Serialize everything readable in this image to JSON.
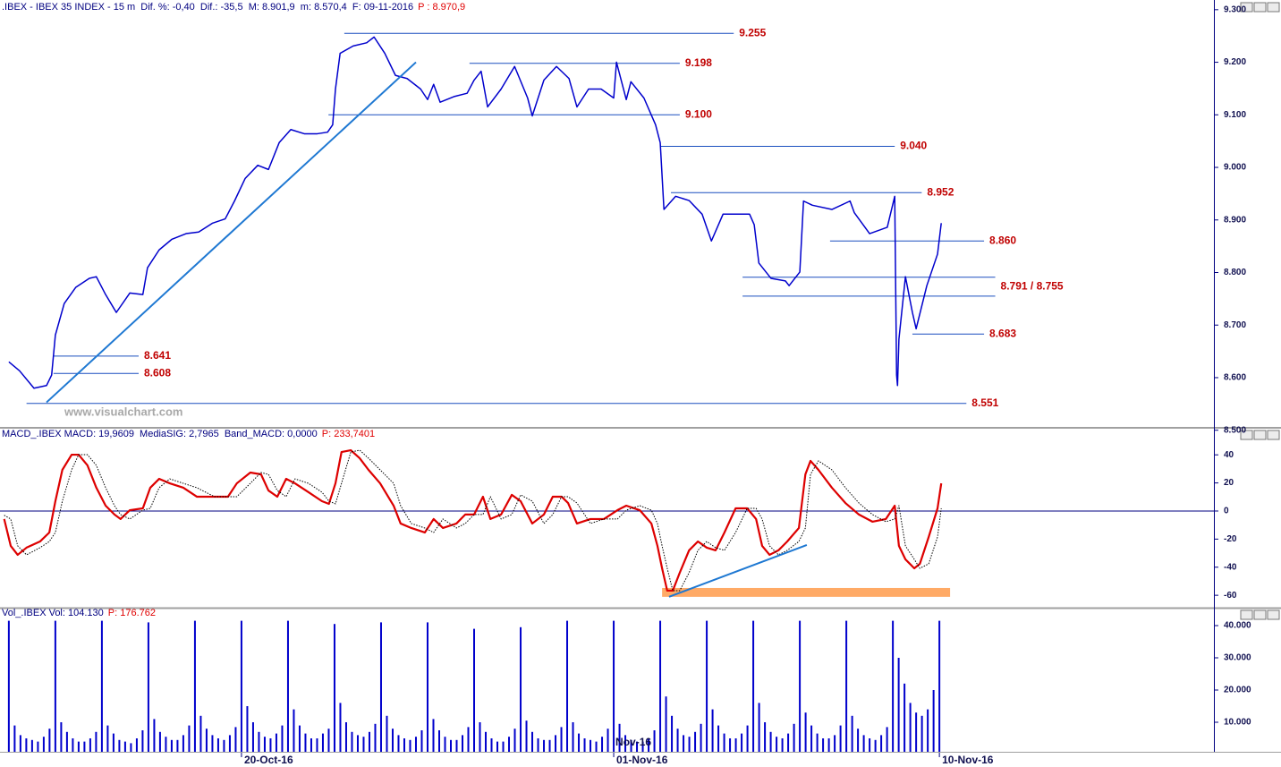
{
  "chart_data": [
    {
      "type": "line",
      "title": ".IBEX - IBEX 35 INDEX - 15 m  Dif. %: -0,40  Dif.: -35,5  M: 8.901,9  m: 8.570,4  F: 09-11-2016",
      "subtitle": "P : 8.970,9",
      "color": "#0000cc",
      "x": [
        0,
        0.23,
        0.54,
        0.81,
        0.92,
        1.0,
        1.19,
        1.44,
        1.73,
        1.88,
        2.08,
        2.31,
        2.6,
        2.88,
        2.98,
        3.23,
        3.5,
        3.81,
        4.08,
        4.38,
        4.65,
        4.85,
        5.08,
        5.35,
        5.58,
        5.81,
        6.06,
        6.35,
        6.63,
        6.85,
        6.96,
        7.02,
        7.12,
        7.4,
        7.69,
        7.85,
        8.08,
        8.31,
        8.56,
        8.85,
        9.0,
        9.13,
        9.27,
        9.58,
        9.85,
        10.0,
        10.15,
        10.29,
        10.58,
        10.87,
        11.15,
        11.25,
        11.5,
        11.77,
        12.04,
        12.21,
        12.46,
        12.73,
        13.0,
        13.06,
        13.27,
        13.37,
        13.65,
        13.9,
        14.0,
        14.08,
        14.33,
        14.62,
        14.9,
        15.1,
        15.35,
        15.62,
        15.92,
        16.02,
        16.12,
        16.38,
        16.69,
        16.77,
        17.0,
        17.08,
        17.27,
        17.69,
        18.08,
        18.17,
        18.5,
        18.88,
        19.04,
        19.08,
        19.1,
        19.13,
        19.27,
        19.42,
        19.5,
        19.73,
        19.96,
        20.04
      ],
      "values": [
        8630,
        8613,
        8580,
        8585,
        8605,
        8681,
        8741,
        8772,
        8789,
        8792,
        8758,
        8724,
        8761,
        8758,
        8809,
        8843,
        8863,
        8874,
        8877,
        8894,
        8902,
        8936,
        8979,
        9004,
        8996,
        9047,
        9072,
        9064,
        9064,
        9067,
        9081,
        9149,
        9217,
        9231,
        9237,
        9248,
        9217,
        9175,
        9169,
        9149,
        9129,
        9158,
        9124,
        9135,
        9141,
        9166,
        9183,
        9115,
        9149,
        9192,
        9132,
        9098,
        9166,
        9192,
        9169,
        9115,
        9149,
        9149,
        9132,
        9200,
        9129,
        9163,
        9132,
        9081,
        9047,
        8920,
        8945,
        8937,
        8911,
        8860,
        8911,
        8911,
        8911,
        8891,
        8818,
        8789,
        8784,
        8775,
        8801,
        8936,
        8928,
        8920,
        8936,
        8914,
        8874,
        8886,
        8945,
        8605,
        8585,
        8673,
        8792,
        8724,
        8693,
        8775,
        8835,
        8894
      ],
      "xlim": [
        -0.19,
        25.9
      ],
      "ylim": [
        8508,
        9298
      ],
      "yticks": [
        {
          "value": 8500,
          "label": "8.500"
        },
        {
          "value": 8600,
          "label": "8.600"
        },
        {
          "value": 8700,
          "label": "8.700"
        },
        {
          "value": 8800,
          "label": "8.800"
        },
        {
          "value": 8900,
          "label": "8.900"
        },
        {
          "value": 9000,
          "label": "9.000"
        },
        {
          "value": 9100,
          "label": "9.100"
        },
        {
          "value": 9200,
          "label": "9.200"
        },
        {
          "value": 9300,
          "label": "9.300"
        }
      ],
      "levels": [
        {
          "values": [
            9255
          ],
          "label": "9.255",
          "from": 7.21,
          "to": 15.58
        },
        {
          "values": [
            9198
          ],
          "label": "9.198",
          "from": 9.9,
          "to": 14.42
        },
        {
          "values": [
            9100
          ],
          "label": "9.100",
          "from": 6.87,
          "to": 14.42
        },
        {
          "values": [
            9040
          ],
          "label": "9.040",
          "from": 14.0,
          "to": 19.04
        },
        {
          "values": [
            8952
          ],
          "label": "8.952",
          "from": 14.23,
          "to": 19.62
        },
        {
          "values": [
            8860
          ],
          "label": "8.860",
          "from": 17.65,
          "to": 20.96
        },
        {
          "values": [
            8791,
            8755
          ],
          "label": "8.791 / 8.755",
          "from": 15.77,
          "to": 21.2
        },
        {
          "values": [
            8683
          ],
          "label": "8.683",
          "from": 19.42,
          "to": 20.96
        },
        {
          "values": [
            8641
          ],
          "label": "8.641",
          "from": 0.96,
          "to": 2.79
        },
        {
          "values": [
            8608
          ],
          "label": "8.608",
          "from": 0.96,
          "to": 2.79
        },
        {
          "values": [
            8551
          ],
          "label": "8.551",
          "from": 0.38,
          "to": 20.58
        }
      ],
      "trendlines": [
        [
          0.81,
          8553,
          8.75,
          9200
        ]
      ],
      "trend_color": "#1e78d2"
    },
    {
      "type": "line",
      "title": "MACD_.IBEX MACD: 19,9609  MediaSIG: 2,7965  Band_MACD: 0,0000",
      "subtitle": "P: 233,7401",
      "x": [
        -0.1,
        0.04,
        0.19,
        0.38,
        0.67,
        0.87,
        1.0,
        1.15,
        1.35,
        1.5,
        1.69,
        1.88,
        2.08,
        2.27,
        2.4,
        2.6,
        2.88,
        3.04,
        3.23,
        3.46,
        3.75,
        4.04,
        4.42,
        4.71,
        4.9,
        5.19,
        5.42,
        5.58,
        5.77,
        5.96,
        6.15,
        6.44,
        6.73,
        6.88,
        7.02,
        7.15,
        7.35,
        7.54,
        7.73,
        7.98,
        8.27,
        8.42,
        8.65,
        8.94,
        9.13,
        9.33,
        9.62,
        9.81,
        10.0,
        10.19,
        10.35,
        10.58,
        10.81,
        11.0,
        11.25,
        11.5,
        11.69,
        11.88,
        12.02,
        12.21,
        12.5,
        12.79,
        13.08,
        13.27,
        13.56,
        13.81,
        13.94,
        14.04,
        14.15,
        14.27,
        14.42,
        14.62,
        14.81,
        15.0,
        15.19,
        15.38,
        15.62,
        15.87,
        16.06,
        16.19,
        16.35,
        16.54,
        16.73,
        16.98,
        17.12,
        17.23,
        17.4,
        17.69,
        17.98,
        18.27,
        18.56,
        18.85,
        19.04,
        19.13,
        19.27,
        19.46,
        19.58,
        19.77,
        19.96,
        20.04
      ],
      "series": [
        {
          "color": "#dd0000",
          "values": [
            -5.7,
            -24.8,
            -31.2,
            -26.1,
            -21.7,
            -15.3,
            7.0,
            29.3,
            40.1,
            40.1,
            32.5,
            16.6,
            3.8,
            -2.5,
            -5.7,
            0.6,
            1.9,
            16.6,
            22.9,
            19.7,
            16.6,
            10.2,
            10.2,
            10.2,
            19.7,
            27.4,
            26.1,
            14.6,
            10.2,
            22.9,
            19.7,
            13.4,
            7.0,
            5.1,
            19.7,
            42.0,
            43.3,
            37.6,
            29.3,
            19.7,
            3.8,
            -8.9,
            -12.1,
            -15.3,
            -5.7,
            -12.1,
            -8.9,
            -2.5,
            -2.5,
            10.2,
            -5.7,
            -2.5,
            11.5,
            7.0,
            -8.9,
            -2.5,
            10.2,
            10.2,
            5.7,
            -8.9,
            -5.7,
            -5.7,
            0.6,
            3.8,
            0.6,
            -8.9,
            -24.8,
            -40.8,
            -56.7,
            -56.7,
            -43.9,
            -28.0,
            -21.7,
            -26.1,
            -28.0,
            -15.3,
            1.9,
            1.9,
            -5.7,
            -24.8,
            -31.2,
            -28.0,
            -21.7,
            -12.1,
            26.1,
            35.7,
            29.3,
            16.6,
            5.7,
            -2.5,
            -7.6,
            -5.7,
            3.8,
            -24.8,
            -34.4,
            -40.8,
            -37.6,
            -18.5,
            1.9,
            19.7
          ]
        },
        {
          "color": "#000000",
          "dashed": true,
          "values": [
            -3,
            -5.7,
            -24.8,
            -31.2,
            -26.1,
            -21.7,
            -15.3,
            7.0,
            29.3,
            40.1,
            40.1,
            32.5,
            16.6,
            3.8,
            -2.5,
            -5.7,
            0.6,
            1.9,
            16.6,
            22.9,
            19.7,
            16.6,
            10.2,
            10.2,
            10.2,
            19.7,
            27.4,
            26.1,
            14.6,
            10.2,
            22.9,
            19.7,
            13.4,
            7.0,
            5.1,
            19.7,
            42.0,
            43.3,
            37.6,
            29.3,
            19.7,
            3.8,
            -8.9,
            -12.1,
            -15.3,
            -5.7,
            -12.1,
            -8.9,
            -2.5,
            -2.5,
            10.2,
            -5.7,
            -2.5,
            11.5,
            7.0,
            -8.9,
            -2.5,
            10.2,
            10.2,
            5.7,
            -8.9,
            -5.7,
            -5.7,
            0.6,
            3.8,
            0.6,
            -8.9,
            -24.8,
            -40.8,
            -56.7,
            -56.7,
            -43.9,
            -28.0,
            -21.7,
            -26.1,
            -28.0,
            -15.3,
            1.9,
            1.9,
            -5.7,
            -24.8,
            -31.2,
            -28.0,
            -21.7,
            -12.1,
            26.1,
            35.7,
            29.3,
            16.6,
            5.7,
            -2.5,
            -7.6,
            -5.7,
            3.8,
            -24.8,
            -34.4,
            -40.8,
            -37.6,
            -18.5,
            1.9
          ]
        }
      ],
      "xlim": [
        -0.19,
        25.9
      ],
      "ylim": [
        -68.2,
        51.6
      ],
      "yticks": [
        -60,
        -40,
        -20,
        0,
        20,
        40
      ],
      "baseline": 0,
      "baseline_color": "#000080",
      "trendlines": [
        [
          14.19,
          -61.1,
          17.15,
          -24.2
        ]
      ],
      "trend_color": "#1e78d2",
      "band": {
        "x": [
          14.04,
          20.23
        ],
        "y": [
          -54.8,
          -61.1
        ],
        "color": "#ffaa66"
      }
    },
    {
      "type": "bar",
      "title": "Vol_.IBEX Vol: 104.130",
      "subtitle": "P: 176.762",
      "color": "#0000cc",
      "x": [
        0,
        0.125,
        0.25,
        0.375,
        0.5,
        0.625,
        0.75,
        0.875,
        1,
        1.125,
        1.25,
        1.375,
        1.5,
        1.625,
        1.75,
        1.875,
        2,
        2.125,
        2.25,
        2.375,
        2.5,
        2.625,
        2.75,
        2.875,
        3,
        3.125,
        3.25,
        3.375,
        3.5,
        3.625,
        3.75,
        3.875,
        4,
        4.125,
        4.25,
        4.375,
        4.5,
        4.625,
        4.75,
        4.875,
        5,
        5.125,
        5.25,
        5.375,
        5.5,
        5.625,
        5.75,
        5.875,
        6,
        6.125,
        6.25,
        6.375,
        6.5,
        6.625,
        6.75,
        6.875,
        7,
        7.125,
        7.25,
        7.375,
        7.5,
        7.625,
        7.75,
        7.875,
        8,
        8.125,
        8.25,
        8.375,
        8.5,
        8.625,
        8.75,
        8.875,
        9,
        9.125,
        9.25,
        9.375,
        9.5,
        9.625,
        9.75,
        9.875,
        10,
        10.125,
        10.25,
        10.375,
        10.5,
        10.625,
        10.75,
        10.875,
        11,
        11.125,
        11.25,
        11.375,
        11.5,
        11.625,
        11.75,
        11.875,
        12,
        12.125,
        12.25,
        12.375,
        12.5,
        12.625,
        12.75,
        12.875,
        13,
        13.125,
        13.25,
        13.375,
        13.5,
        13.625,
        13.75,
        13.875,
        14,
        14.125,
        14.25,
        14.375,
        14.5,
        14.625,
        14.75,
        14.875,
        15,
        15.125,
        15.25,
        15.375,
        15.5,
        15.625,
        15.75,
        15.875,
        16,
        16.125,
        16.25,
        16.375,
        16.5,
        16.625,
        16.75,
        16.875,
        17,
        17.125,
        17.25,
        17.375,
        17.5,
        17.625,
        17.75,
        17.875,
        18,
        18.125,
        18.25,
        18.375,
        18.5,
        18.625,
        18.75,
        18.875,
        19,
        19.125,
        19.25,
        19.375,
        19.5,
        19.625,
        19.75,
        19.875,
        20
      ],
      "values": [
        41500,
        9000,
        6000,
        5000,
        4500,
        4000,
        5500,
        8000,
        41500,
        10000,
        7000,
        5000,
        4000,
        4000,
        5000,
        7000,
        41500,
        9000,
        6500,
        4500,
        4000,
        3500,
        5000,
        7500,
        41000,
        11000,
        7000,
        5500,
        4500,
        4500,
        6000,
        9000,
        41500,
        12000,
        8000,
        6000,
        5000,
        4500,
        6000,
        8500,
        41500,
        15000,
        10000,
        7000,
        5500,
        5000,
        6500,
        9000,
        41500,
        14000,
        9000,
        6500,
        5000,
        5000,
        6500,
        8000,
        40500,
        16000,
        10000,
        7000,
        6000,
        5500,
        7000,
        9500,
        41000,
        12000,
        8000,
        6000,
        5000,
        4500,
        5500,
        7500,
        41000,
        11000,
        7500,
        5500,
        4500,
        4500,
        6000,
        8500,
        39000,
        10000,
        7000,
        5000,
        4000,
        4000,
        5500,
        8000,
        39500,
        10500,
        7000,
        5000,
        4500,
        4500,
        6000,
        8500,
        41500,
        10000,
        6500,
        5000,
        4500,
        4000,
        5500,
        8000,
        41500,
        9500,
        6000,
        4500,
        4000,
        4000,
        5000,
        7500,
        41500,
        18000,
        12000,
        8000,
        6000,
        5500,
        7000,
        9500,
        41500,
        14000,
        9000,
        6500,
        5000,
        5000,
        6500,
        9000,
        41500,
        16000,
        10000,
        7000,
        5500,
        5000,
        6500,
        9500,
        41500,
        13000,
        9000,
        6500,
        5000,
        5000,
        6000,
        9000,
        41500,
        12000,
        8000,
        6000,
        5000,
        4500,
        6000,
        8500,
        41500,
        30000,
        22000,
        16000,
        13000,
        12000,
        14000,
        20000,
        41500
      ],
      "xlim": [
        -0.19,
        25.9
      ],
      "ylim": [
        0,
        42500
      ],
      "yticks": [
        {
          "value": 10000,
          "label": "10.000"
        },
        {
          "value": 20000,
          "label": "20.000"
        },
        {
          "value": 30000,
          "label": "30.000"
        },
        {
          "value": 40000,
          "label": "40.000"
        }
      ],
      "xticks": [
        {
          "value": 5,
          "label": "20-Oct-16"
        },
        {
          "value": 13,
          "label": "01-Nov-16"
        },
        {
          "value": 20,
          "label": "10-Nov-16"
        }
      ],
      "annotation": {
        "text": "Nov-16",
        "x": 13
      }
    }
  ],
  "watermark": "www.visualchart.com"
}
